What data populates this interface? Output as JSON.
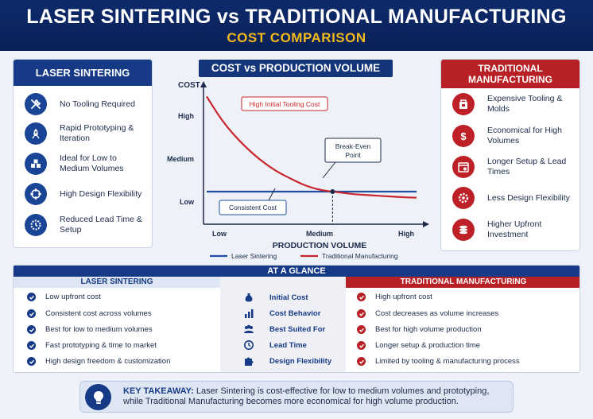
{
  "header": {
    "title": "LASER SINTERING vs TRADITIONAL MANUFACTURING",
    "subtitle": "COST COMPARISON"
  },
  "left_panel": {
    "title": "LASER SINTERING",
    "items": [
      {
        "icon": "tools-icon",
        "text": "No Tooling Required"
      },
      {
        "icon": "rocket-icon",
        "text": "Rapid Prototyping & Iteration"
      },
      {
        "icon": "cubes-icon",
        "text": "Ideal for Low to Medium Volumes"
      },
      {
        "icon": "flexibility-icon",
        "text": "High Design Flexibility"
      },
      {
        "icon": "gear-clock-icon",
        "text": "Reduced Lead Time & Setup"
      }
    ]
  },
  "right_panel": {
    "title_line1": "TRADITIONAL",
    "title_line2": "MANUFACTURING",
    "items": [
      {
        "icon": "mold-icon",
        "text": "Expensive Tooling & Molds"
      },
      {
        "icon": "dollar-icon",
        "text": "Economical for High Volumes"
      },
      {
        "icon": "calendar-icon",
        "text": "Longer Setup & Lead Times"
      },
      {
        "icon": "gear-icon",
        "text": "Less Design Flexibility"
      },
      {
        "icon": "coins-icon",
        "text": "Higher Upfront Investment"
      }
    ]
  },
  "chart_data": {
    "type": "line",
    "title": "COST vs PRODUCTION VOLUME",
    "xlabel": "PRODUCTION VOLUME",
    "ylabel": "COST",
    "x_ticks": [
      "Low",
      "Medium",
      "High"
    ],
    "y_ticks": [
      "Low",
      "Medium",
      "High"
    ],
    "xlim": [
      0,
      100
    ],
    "ylim": [
      0,
      100
    ],
    "series": [
      {
        "name": "Laser Sintering",
        "color": "#1f4ea3",
        "x": [
          0,
          100
        ],
        "y": [
          25,
          25
        ]
      },
      {
        "name": "Traditional Manufacturing",
        "color": "#c8252c",
        "x": [
          0,
          5,
          10,
          15,
          20,
          25,
          30,
          35,
          40,
          45,
          50,
          55,
          60,
          65,
          70,
          75,
          80,
          85,
          90,
          95,
          100
        ],
        "y": [
          98,
          85,
          74,
          65,
          57,
          50,
          44,
          39,
          35,
          31,
          28,
          26,
          25,
          24,
          23,
          22.5,
          22,
          21.5,
          21,
          20.6,
          20.3
        ]
      }
    ],
    "annotations": [
      {
        "text": "High Initial Tooling Cost",
        "style": "red-box"
      },
      {
        "text_line1": "Break-Even",
        "text_line2": "Point",
        "x": 60,
        "y": 25
      },
      {
        "text": "Consistent Cost",
        "style": "blue-box"
      }
    ],
    "legend": "bottom",
    "grid": false
  },
  "glance": {
    "title": "AT A GLANCE",
    "left_head": "LASER SINTERING",
    "right_head": "TRADITIONAL MANUFACTURING",
    "rows": [
      {
        "left": "Low upfront cost",
        "metric": "Initial Cost",
        "icon": "money-bag-icon",
        "right": "High upfront cost"
      },
      {
        "left": "Consistent cost across volumes",
        "metric": "Cost Behavior",
        "icon": "bar-chart-icon",
        "right": "Cost decreases as volume increases"
      },
      {
        "left": "Best for low to medium volumes",
        "metric": "Best Suited For",
        "icon": "users-icon",
        "right": "Best for high volume production"
      },
      {
        "left": "Fast prototyping & time to market",
        "metric": "Lead Time",
        "icon": "clock-icon",
        "right": "Longer setup & production time"
      },
      {
        "left": "High design freedom & customization",
        "metric": "Design Flexibility",
        "icon": "puzzle-icon",
        "right": "Limited by tooling & manufacturing process"
      }
    ]
  },
  "takeaway": {
    "label": "KEY TAKEAWAY:",
    "line1": "Laser Sintering is cost-effective for low to medium volumes and prototyping,",
    "line2": "while Traditional Manufacturing becomes more economical for high volume production."
  }
}
